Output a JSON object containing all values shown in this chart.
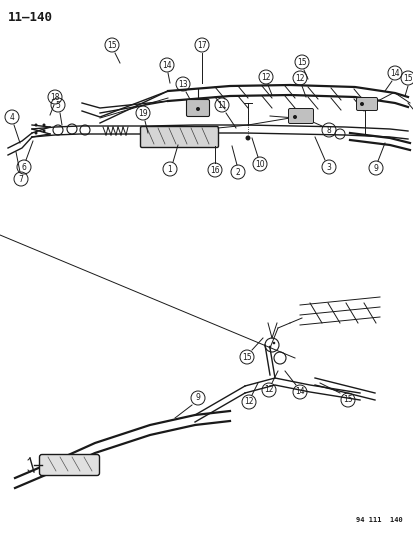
{
  "title": "11–140",
  "footer": "94 111  140",
  "background_color": "#ffffff",
  "line_color": "#1a1a1a",
  "figsize": [
    4.14,
    5.33
  ],
  "dpi": 100
}
